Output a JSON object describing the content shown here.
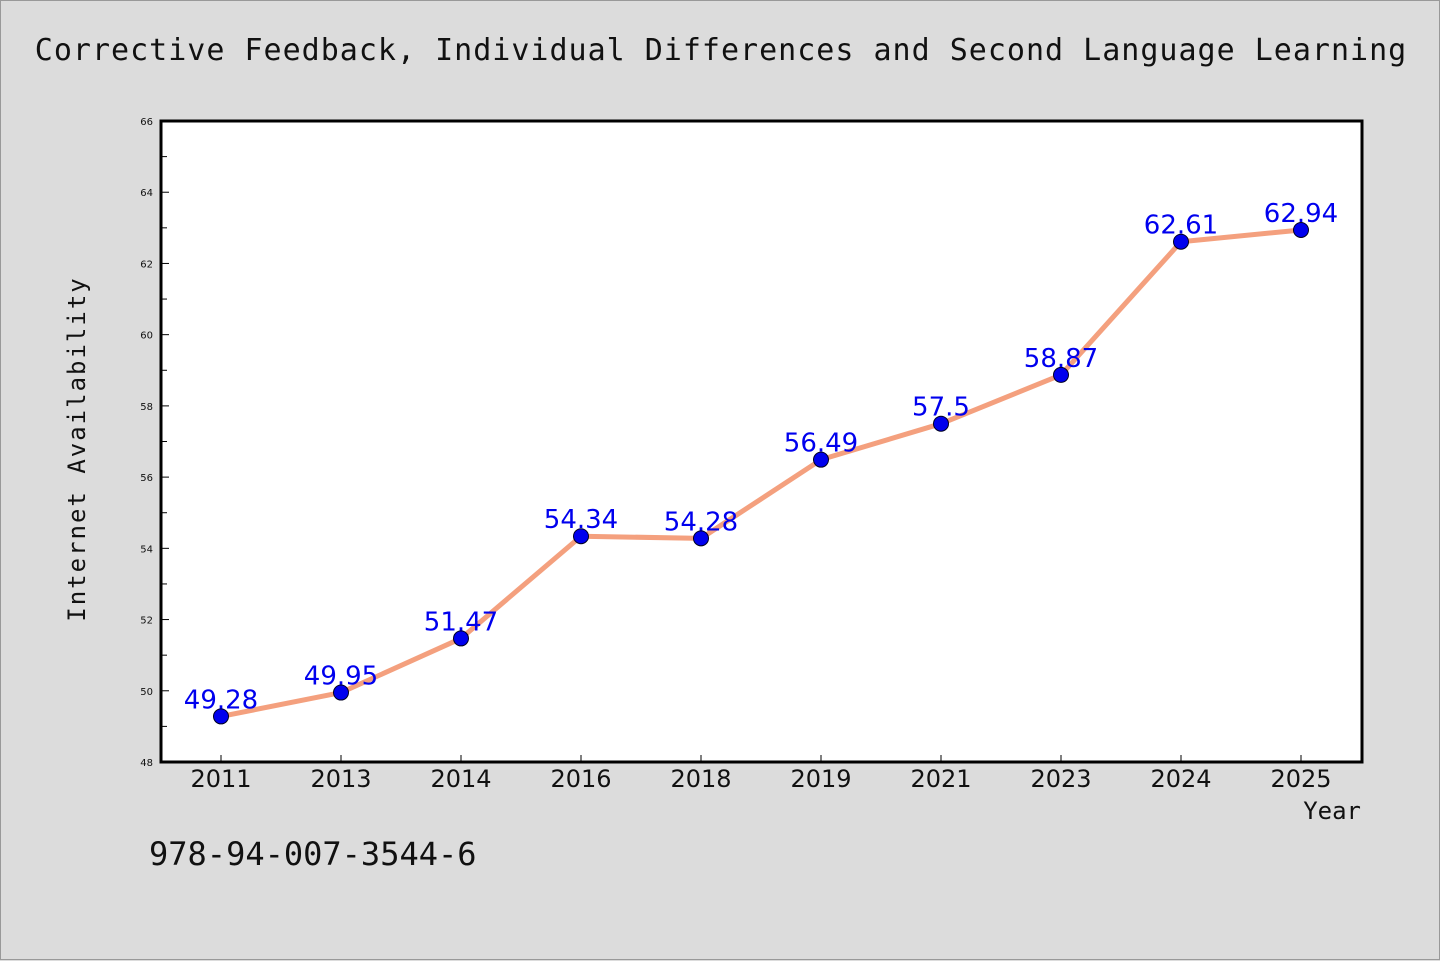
{
  "chart_data": {
    "type": "line",
    "title": "Corrective Feedback, Individual Differences and Second Language Learning",
    "xlabel": "Year",
    "ylabel": "Internet Availability",
    "categories": [
      "2011",
      "2013",
      "2014",
      "2016",
      "2018",
      "2019",
      "2021",
      "2023",
      "2024",
      "2025"
    ],
    "series": [
      {
        "values": [
          49.28,
          49.95,
          51.47,
          54.34,
          54.28,
          56.49,
          57.5,
          58.87,
          62.61,
          62.94
        ],
        "labels": [
          "49.28",
          "49.95",
          "51.47",
          "54.34",
          "54.28",
          "56.49",
          "57.5",
          "58.87",
          "62.61",
          "62.94"
        ]
      }
    ],
    "ylim": [
      48,
      66
    ],
    "yticks": [
      "48",
      "50",
      "52",
      "54",
      "56",
      "58",
      "60",
      "62",
      "64",
      "66"
    ],
    "grid": false,
    "colors": {
      "line": "#f4a07e",
      "marker": "#0000ee",
      "label": "#0000ee",
      "background": "#dcdcdc",
      "plot_background": "#ffffff"
    }
  },
  "footer": {
    "isbn": "978-94-007-3544-6"
  }
}
